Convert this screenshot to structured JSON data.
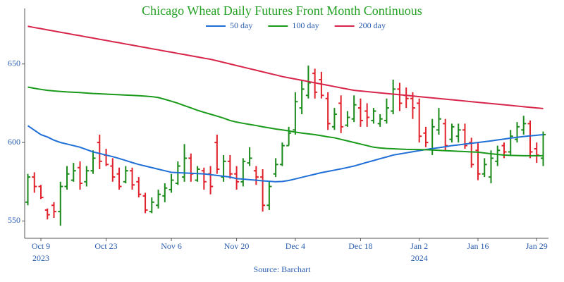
{
  "chart_data": {
    "type": "ohlc",
    "title": "Chicago Wheat Daily Futures Front Month Continuous",
    "source": "Source: Barchart",
    "x": [
      "2023-10-05",
      "2023-10-06",
      "2023-10-09",
      "2023-10-10",
      "2023-10-11",
      "2023-10-12",
      "2023-10-13",
      "2023-10-16",
      "2023-10-17",
      "2023-10-18",
      "2023-10-19",
      "2023-10-20",
      "2023-10-23",
      "2023-10-24",
      "2023-10-25",
      "2023-10-26",
      "2023-10-27",
      "2023-10-30",
      "2023-10-31",
      "2023-11-01",
      "2023-11-02",
      "2023-11-03",
      "2023-11-06",
      "2023-11-07",
      "2023-11-08",
      "2023-11-09",
      "2023-11-10",
      "2023-11-13",
      "2023-11-14",
      "2023-11-15",
      "2023-11-16",
      "2023-11-17",
      "2023-11-20",
      "2023-11-21",
      "2023-11-22",
      "2023-11-24",
      "2023-11-27",
      "2023-11-28",
      "2023-11-29",
      "2023-11-30",
      "2023-12-01",
      "2023-12-04",
      "2023-12-05",
      "2023-12-06",
      "2023-12-07",
      "2023-12-08",
      "2023-12-11",
      "2023-12-12",
      "2023-12-13",
      "2023-12-14",
      "2023-12-15",
      "2023-12-18",
      "2023-12-19",
      "2023-12-20",
      "2023-12-21",
      "2023-12-22",
      "2023-12-26",
      "2023-12-27",
      "2023-12-28",
      "2023-12-29",
      "2024-01-02",
      "2024-01-03",
      "2024-01-04",
      "2024-01-05",
      "2024-01-08",
      "2024-01-09",
      "2024-01-10",
      "2024-01-11",
      "2024-01-12",
      "2024-01-16",
      "2024-01-17",
      "2024-01-18",
      "2024-01-19",
      "2024-01-22",
      "2024-01-23",
      "2024-01-24",
      "2024-01-25",
      "2024-01-26",
      "2024-01-29",
      "2024-01-30"
    ],
    "open": [
      562,
      578,
      572,
      557,
      560,
      556,
      572,
      576,
      584,
      575,
      582,
      600,
      592,
      585,
      580,
      575,
      582,
      575,
      566,
      556,
      560,
      566,
      570,
      574,
      578,
      590,
      576,
      582,
      580,
      600,
      578,
      588,
      580,
      575,
      587,
      582,
      578,
      560,
      580,
      586,
      598,
      608,
      622,
      630,
      644,
      640,
      628,
      610,
      625,
      611,
      615,
      622,
      620,
      614,
      612,
      614,
      620,
      634,
      630,
      628,
      625,
      606,
      596,
      608,
      612,
      602,
      604,
      608,
      600,
      595,
      580,
      578,
      588,
      598,
      594,
      602,
      608,
      612,
      596,
      590
    ],
    "high": [
      580,
      581,
      573,
      558,
      562,
      575,
      585,
      587,
      588,
      585,
      595,
      605,
      596,
      590,
      584,
      585,
      584,
      578,
      568,
      565,
      570,
      574,
      580,
      588,
      599,
      593,
      585,
      584,
      585,
      605,
      592,
      592,
      585,
      590,
      597,
      585,
      583,
      575,
      590,
      600,
      610,
      632,
      640,
      649,
      647,
      645,
      632,
      622,
      630,
      620,
      630,
      628,
      625,
      622,
      618,
      628,
      640,
      638,
      635,
      632,
      628,
      610,
      615,
      622,
      615,
      612,
      612,
      612,
      603,
      600,
      590,
      595,
      598,
      600,
      608,
      613,
      617,
      614,
      600,
      607
    ],
    "low": [
      560,
      568,
      564,
      551,
      552,
      547,
      570,
      575,
      570,
      572,
      580,
      583,
      585,
      575,
      570,
      574,
      570,
      565,
      555,
      555,
      558,
      562,
      568,
      573,
      575,
      575,
      575,
      570,
      567,
      580,
      575,
      577,
      570,
      572,
      585,
      573,
      556,
      557,
      578,
      585,
      598,
      605,
      618,
      628,
      628,
      628,
      608,
      608,
      606,
      610,
      613,
      610,
      610,
      612,
      610,
      612,
      618,
      620,
      622,
      615,
      600,
      597,
      592,
      605,
      595,
      600,
      600,
      596,
      584,
      576,
      578,
      574,
      585,
      590,
      592,
      600,
      605,
      590,
      587,
      585
    ],
    "close": [
      578,
      572,
      565,
      554,
      556,
      572,
      580,
      582,
      574,
      582,
      590,
      588,
      586,
      578,
      572,
      582,
      573,
      567,
      557,
      562,
      567,
      571,
      576,
      585,
      590,
      580,
      583,
      575,
      572,
      583,
      588,
      580,
      575,
      588,
      590,
      578,
      560,
      572,
      586,
      598,
      606,
      626,
      634,
      638,
      632,
      630,
      612,
      618,
      610,
      616,
      624,
      614,
      616,
      620,
      615,
      622,
      634,
      625,
      628,
      622,
      604,
      600,
      610,
      615,
      598,
      610,
      608,
      598,
      586,
      580,
      586,
      590,
      595,
      594,
      604,
      610,
      612,
      594,
      592,
      605
    ],
    "up_color": "#1a8a1a",
    "down_color": "#e0202a",
    "series": [
      {
        "name": "50 day",
        "color": "#1f6fd6",
        "values": [
          610.7,
          607.8,
          605.0,
          603.5,
          601.5,
          600.0,
          599.0,
          598.0,
          597.0,
          595.5,
          594.0,
          593.0,
          592.0,
          591.0,
          589.8,
          588.5,
          587.2,
          586.0,
          585.0,
          584.0,
          583.0,
          582.0,
          581.0,
          580.8,
          580.6,
          580.4,
          580.2,
          580.0,
          579.5,
          579.0,
          578.5,
          578.0,
          577.0,
          576.7,
          576.3,
          576.0,
          575.6,
          575.3,
          575.0,
          575.2,
          575.8,
          576.8,
          577.8,
          578.8,
          579.8,
          580.8,
          581.6,
          582.4,
          583.2,
          584.1,
          585.0,
          586.2,
          587.4,
          588.5,
          589.7,
          590.8,
          592.0,
          592.7,
          593.4,
          594.1,
          594.8,
          595.5,
          596.1,
          596.7,
          597.3,
          598.0,
          598.5,
          599.0,
          599.5,
          600.0,
          600.5,
          601.0,
          601.6,
          602.2,
          602.8,
          603.3,
          603.8,
          604.2,
          604.6,
          605.0
        ]
      },
      {
        "name": "100 day",
        "color": "#1a9a1a",
        "values": [
          635.3,
          634.5,
          633.8,
          633.2,
          632.8,
          632.5,
          632.2,
          632.0,
          631.8,
          631.5,
          631.2,
          631.0,
          630.8,
          630.6,
          630.4,
          630.2,
          630.0,
          629.8,
          629.5,
          629.2,
          628.6,
          627.5,
          626.3,
          625.0,
          623.5,
          622.0,
          620.5,
          619.2,
          618.0,
          616.8,
          615.5,
          614.0,
          613.0,
          612.2,
          611.5,
          610.8,
          610.0,
          609.3,
          608.6,
          608.0,
          607.4,
          606.6,
          606.0,
          605.5,
          605.0,
          604.3,
          603.6,
          603.0,
          602.0,
          601.0,
          600.0,
          599.0,
          598.0,
          597.0,
          596.5,
          596.2,
          596.0,
          595.8,
          595.6,
          595.5,
          595.5,
          595.4,
          595.2,
          595.0,
          594.8,
          594.6,
          594.4,
          594.2,
          594.0,
          593.8,
          593.3,
          592.8,
          592.4,
          592.0,
          591.8,
          591.7,
          591.6,
          591.6,
          591.6,
          591.6
        ]
      },
      {
        "name": "200 day",
        "color": "#d7264a",
        "values": [
          674.0,
          673.2,
          672.5,
          671.7,
          671.0,
          670.2,
          669.5,
          668.7,
          668.0,
          667.2,
          666.5,
          665.7,
          665.0,
          664.2,
          663.5,
          662.7,
          662.0,
          661.2,
          660.5,
          659.7,
          659.0,
          658.2,
          657.5,
          656.7,
          656.0,
          655.2,
          654.5,
          653.7,
          653.0,
          652.0,
          651.0,
          650.0,
          649.0,
          648.0,
          647.0,
          646.0,
          645.0,
          644.0,
          643.0,
          642.0,
          641.2,
          640.4,
          639.6,
          638.8,
          638.0,
          637.2,
          636.4,
          635.6,
          634.8,
          634.0,
          633.2,
          632.8,
          632.4,
          632.0,
          631.6,
          631.2,
          630.8,
          630.4,
          630.0,
          629.6,
          629.2,
          628.8,
          628.4,
          628.0,
          627.6,
          627.2,
          626.8,
          626.4,
          626.0,
          625.6,
          625.2,
          624.8,
          624.4,
          624.0,
          623.6,
          623.2,
          622.8,
          622.4,
          622.0,
          621.6
        ]
      }
    ],
    "ylim": [
      539,
      684
    ],
    "yticks": [
      550,
      600,
      650
    ],
    "xticks": [
      {
        "value": "2023-10-09",
        "label": "Oct 9"
      },
      {
        "value": "2023-10-23",
        "label": "Oct 23"
      },
      {
        "value": "2023-11-06",
        "label": "Nov 6"
      },
      {
        "value": "2023-11-20",
        "label": "Nov 20"
      },
      {
        "value": "2023-12-04",
        "label": "Dec 4"
      },
      {
        "value": "2023-12-18",
        "label": "Dec 18"
      },
      {
        "value": "2024-01-02",
        "label": "Jan 2"
      },
      {
        "value": "2024-01-16",
        "label": "Jan 16"
      },
      {
        "value": "2024-01-29",
        "label": "Jan 29"
      }
    ],
    "xtick_years": [
      {
        "value": "2023-10-09",
        "label": "2023"
      },
      {
        "value": "2024-01-02",
        "label": "2024"
      }
    ],
    "legend": "top"
  }
}
